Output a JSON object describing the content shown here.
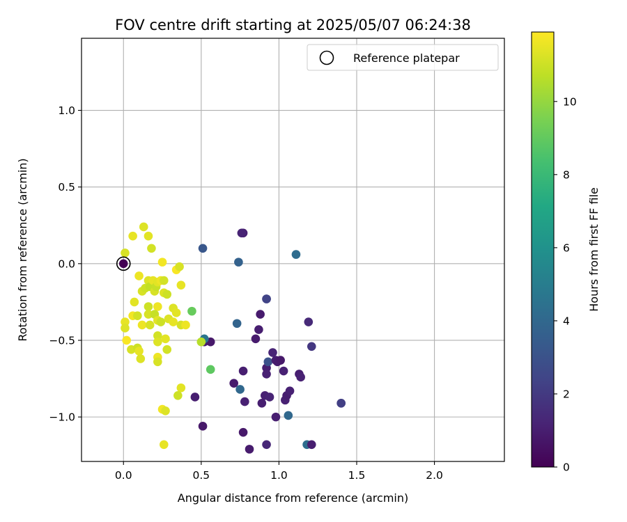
{
  "chart_data": {
    "type": "scatter",
    "title": "FOV centre drift starting at 2025/05/07 06:24:38",
    "xlabel": "Angular distance from reference (arcmin)",
    "ylabel": "Rotation from reference (arcmin)",
    "xlim": [
      -0.27,
      2.45
    ],
    "ylim": [
      -1.29,
      1.47
    ],
    "xticks": [
      "0.0",
      "0.5",
      "1.0",
      "1.5",
      "2.0"
    ],
    "xtick_values": [
      0,
      0.5,
      1.0,
      1.5,
      2.0
    ],
    "yticks": [
      "−1.0",
      "−0.5",
      "0.0",
      "0.5",
      "1.0"
    ],
    "ytick_values": [
      -1.0,
      -0.5,
      0,
      0.5,
      1.0
    ],
    "grid": true,
    "legend": {
      "placement": "top-right",
      "label": "Reference platepar"
    },
    "reference_point": {
      "x": 0.0,
      "y": 0.0
    },
    "colorbar": {
      "label": "Hours from first FF file",
      "range": [
        0,
        11.9
      ],
      "ticks": [
        "0",
        "2",
        "4",
        "6",
        "8",
        "10"
      ],
      "tick_values": [
        0,
        2,
        4,
        6,
        8,
        10
      ],
      "colormap": "viridis"
    },
    "series": [
      {
        "points": [
          {
            "x": 0.0,
            "y": 0.0,
            "h": 0.0
          },
          {
            "x": 0.52,
            "y": -0.51,
            "h": 0.9
          },
          {
            "x": 0.56,
            "y": -0.51,
            "h": 0.8
          },
          {
            "x": 0.46,
            "y": -0.87,
            "h": 1.0
          },
          {
            "x": 0.51,
            "y": -1.06,
            "h": 0.8
          },
          {
            "x": 0.71,
            "y": -0.78,
            "h": 0.9
          },
          {
            "x": 0.77,
            "y": -0.7,
            "h": 1.0
          },
          {
            "x": 0.78,
            "y": -0.9,
            "h": 1.1
          },
          {
            "x": 0.77,
            "y": -1.1,
            "h": 0.8
          },
          {
            "x": 0.81,
            "y": -1.21,
            "h": 0.9
          },
          {
            "x": 0.77,
            "y": 0.2,
            "h": 1.0
          },
          {
            "x": 0.76,
            "y": 0.2,
            "h": 1.2
          },
          {
            "x": 0.51,
            "y": 0.1,
            "h": 3.2
          },
          {
            "x": 0.74,
            "y": 0.01,
            "h": 3.7
          },
          {
            "x": 0.73,
            "y": -0.39,
            "h": 3.8
          },
          {
            "x": 0.75,
            "y": -0.82,
            "h": 4.0
          },
          {
            "x": 0.52,
            "y": -0.49,
            "h": 4.6
          },
          {
            "x": 0.85,
            "y": -0.49,
            "h": 0.9
          },
          {
            "x": 0.87,
            "y": -0.43,
            "h": 1.0
          },
          {
            "x": 0.88,
            "y": -0.33,
            "h": 0.9
          },
          {
            "x": 0.92,
            "y": -0.23,
            "h": 2.0
          },
          {
            "x": 0.92,
            "y": -0.23,
            "h": 2.4
          },
          {
            "x": 0.92,
            "y": -0.68,
            "h": 1.0
          },
          {
            "x": 0.92,
            "y": -0.72,
            "h": 1.1
          },
          {
            "x": 0.93,
            "y": -0.64,
            "h": 3.0
          },
          {
            "x": 0.96,
            "y": -0.58,
            "h": 1.2
          },
          {
            "x": 0.98,
            "y": -0.63,
            "h": 1.0
          },
          {
            "x": 0.99,
            "y": -0.64,
            "h": 0.9
          },
          {
            "x": 1.01,
            "y": -0.63,
            "h": 0.8
          },
          {
            "x": 1.03,
            "y": -0.7,
            "h": 1.1
          },
          {
            "x": 0.89,
            "y": -0.91,
            "h": 1.0
          },
          {
            "x": 0.91,
            "y": -0.86,
            "h": 1.1
          },
          {
            "x": 0.94,
            "y": -0.87,
            "h": 1.2
          },
          {
            "x": 0.98,
            "y": -1.0,
            "h": 1.0
          },
          {
            "x": 0.92,
            "y": -1.18,
            "h": 1.3
          },
          {
            "x": 1.04,
            "y": -0.89,
            "h": 1.1
          },
          {
            "x": 1.05,
            "y": -0.86,
            "h": 1.0
          },
          {
            "x": 1.07,
            "y": -0.83,
            "h": 1.1
          },
          {
            "x": 1.06,
            "y": -0.99,
            "h": 4.0
          },
          {
            "x": 1.11,
            "y": 0.06,
            "h": 4.2
          },
          {
            "x": 1.13,
            "y": -0.72,
            "h": 1.0
          },
          {
            "x": 1.14,
            "y": -0.74,
            "h": 1.1
          },
          {
            "x": 1.19,
            "y": -0.38,
            "h": 1.4
          },
          {
            "x": 1.21,
            "y": -0.54,
            "h": 1.9
          },
          {
            "x": 1.18,
            "y": -1.18,
            "h": 4.3
          },
          {
            "x": 1.21,
            "y": -1.18,
            "h": 1.0
          },
          {
            "x": 1.4,
            "y": -0.91,
            "h": 2.0
          },
          {
            "x": 1.4,
            "y": -0.91,
            "h": 2.2
          },
          {
            "x": 0.44,
            "y": -0.31,
            "h": 9.1
          },
          {
            "x": 0.56,
            "y": -0.69,
            "h": 8.9
          },
          {
            "x": 0.5,
            "y": -0.51,
            "h": 10.6
          },
          {
            "x": 0.01,
            "y": 0.07,
            "h": 11.2
          },
          {
            "x": 0.06,
            "y": 0.18,
            "h": 11.5
          },
          {
            "x": 0.13,
            "y": 0.24,
            "h": 11.3
          },
          {
            "x": 0.16,
            "y": 0.18,
            "h": 11.4
          },
          {
            "x": 0.18,
            "y": 0.1,
            "h": 11.1
          },
          {
            "x": 0.1,
            "y": -0.08,
            "h": 11.6
          },
          {
            "x": 0.12,
            "y": -0.18,
            "h": 11.2
          },
          {
            "x": 0.14,
            "y": -0.16,
            "h": 11.0
          },
          {
            "x": 0.16,
            "y": -0.11,
            "h": 11.3
          },
          {
            "x": 0.17,
            "y": -0.15,
            "h": 10.8
          },
          {
            "x": 0.19,
            "y": -0.11,
            "h": 11.5
          },
          {
            "x": 0.2,
            "y": -0.18,
            "h": 11.2
          },
          {
            "x": 0.21,
            "y": -0.15,
            "h": 10.9
          },
          {
            "x": 0.22,
            "y": -0.12,
            "h": 11.4
          },
          {
            "x": 0.24,
            "y": -0.11,
            "h": 11.6
          },
          {
            "x": 0.26,
            "y": -0.11,
            "h": 11.1
          },
          {
            "x": 0.25,
            "y": 0.01,
            "h": 11.7
          },
          {
            "x": 0.26,
            "y": -0.19,
            "h": 11.3
          },
          {
            "x": 0.28,
            "y": -0.2,
            "h": 11.0
          },
          {
            "x": 0.34,
            "y": -0.04,
            "h": 11.8
          },
          {
            "x": 0.36,
            "y": -0.02,
            "h": 11.2
          },
          {
            "x": 0.37,
            "y": -0.14,
            "h": 11.5
          },
          {
            "x": 0.07,
            "y": -0.25,
            "h": 11.4
          },
          {
            "x": 0.16,
            "y": -0.28,
            "h": 11.0
          },
          {
            "x": 0.22,
            "y": -0.28,
            "h": 11.6
          },
          {
            "x": 0.16,
            "y": -0.33,
            "h": 11.2
          },
          {
            "x": 0.2,
            "y": -0.33,
            "h": 10.9
          },
          {
            "x": 0.32,
            "y": -0.29,
            "h": 11.3
          },
          {
            "x": 0.34,
            "y": -0.32,
            "h": 11.4
          },
          {
            "x": 0.01,
            "y": -0.38,
            "h": 11.5
          },
          {
            "x": 0.01,
            "y": -0.42,
            "h": 11.3
          },
          {
            "x": 0.06,
            "y": -0.34,
            "h": 11.7
          },
          {
            "x": 0.09,
            "y": -0.34,
            "h": 11.1
          },
          {
            "x": 0.12,
            "y": -0.4,
            "h": 11.6
          },
          {
            "x": 0.17,
            "y": -0.4,
            "h": 11.2
          },
          {
            "x": 0.22,
            "y": -0.37,
            "h": 11.4
          },
          {
            "x": 0.24,
            "y": -0.38,
            "h": 11.0
          },
          {
            "x": 0.29,
            "y": -0.36,
            "h": 11.3
          },
          {
            "x": 0.32,
            "y": -0.38,
            "h": 11.5
          },
          {
            "x": 0.37,
            "y": -0.4,
            "h": 11.2
          },
          {
            "x": 0.4,
            "y": -0.4,
            "h": 11.6
          },
          {
            "x": 0.02,
            "y": -0.5,
            "h": 11.8
          },
          {
            "x": 0.22,
            "y": -0.47,
            "h": 11.1
          },
          {
            "x": 0.27,
            "y": -0.49,
            "h": 11.4
          },
          {
            "x": 0.22,
            "y": -0.51,
            "h": 11.3
          },
          {
            "x": 0.05,
            "y": -0.56,
            "h": 11.2
          },
          {
            "x": 0.09,
            "y": -0.55,
            "h": 11.0
          },
          {
            "x": 0.1,
            "y": -0.57,
            "h": 11.5
          },
          {
            "x": 0.11,
            "y": -0.62,
            "h": 11.3
          },
          {
            "x": 0.22,
            "y": -0.61,
            "h": 11.6
          },
          {
            "x": 0.22,
            "y": -0.64,
            "h": 11.2
          },
          {
            "x": 0.28,
            "y": -0.56,
            "h": 11.1
          },
          {
            "x": 0.37,
            "y": -0.81,
            "h": 11.4
          },
          {
            "x": 0.35,
            "y": -0.86,
            "h": 11.0
          },
          {
            "x": 0.25,
            "y": -0.95,
            "h": 11.7
          },
          {
            "x": 0.27,
            "y": -0.96,
            "h": 11.3
          },
          {
            "x": 0.26,
            "y": -1.18,
            "h": 11.5
          }
        ]
      }
    ]
  }
}
